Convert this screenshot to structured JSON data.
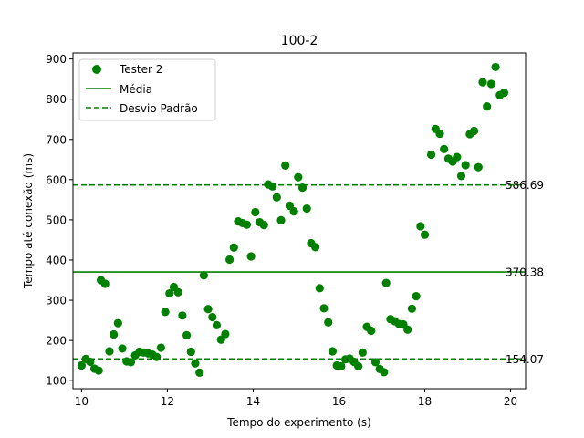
{
  "chart_data": {
    "type": "scatter",
    "title": "100-2",
    "xlabel": "Tempo do experimento (s)",
    "ylabel": "Tempo até conexão (ms)",
    "xlim": [
      9.8,
      20.35
    ],
    "ylim": [
      80,
      915
    ],
    "xticks": [
      10,
      12,
      14,
      16,
      18,
      20
    ],
    "yticks": [
      100,
      200,
      300,
      400,
      500,
      600,
      700,
      800,
      900
    ],
    "grid": false,
    "legend_position": "top-left",
    "color": "#008000",
    "series": [
      {
        "name": "Tester 2",
        "points": [
          [
            10.0,
            138
          ],
          [
            10.1,
            154
          ],
          [
            10.2,
            147
          ],
          [
            10.3,
            130
          ],
          [
            10.4,
            125
          ],
          [
            10.45,
            350
          ],
          [
            10.55,
            341
          ],
          [
            10.65,
            173
          ],
          [
            10.75,
            215
          ],
          [
            10.85,
            243
          ],
          [
            10.95,
            180
          ],
          [
            11.05,
            148
          ],
          [
            11.15,
            146
          ],
          [
            11.25,
            163
          ],
          [
            11.35,
            172
          ],
          [
            11.45,
            170
          ],
          [
            11.55,
            168
          ],
          [
            11.65,
            165
          ],
          [
            11.75,
            159
          ],
          [
            11.85,
            182
          ],
          [
            11.95,
            271
          ],
          [
            12.05,
            317
          ],
          [
            12.15,
            333
          ],
          [
            12.25,
            320
          ],
          [
            12.35,
            262
          ],
          [
            12.45,
            213
          ],
          [
            12.55,
            172
          ],
          [
            12.65,
            143
          ],
          [
            12.75,
            120
          ],
          [
            12.85,
            362
          ],
          [
            12.95,
            278
          ],
          [
            13.05,
            258
          ],
          [
            13.15,
            238
          ],
          [
            13.25,
            202
          ],
          [
            13.35,
            216
          ],
          [
            13.45,
            401
          ],
          [
            13.55,
            431
          ],
          [
            13.65,
            496
          ],
          [
            13.75,
            492
          ],
          [
            13.85,
            488
          ],
          [
            13.95,
            409
          ],
          [
            14.05,
            519
          ],
          [
            14.15,
            494
          ],
          [
            14.25,
            487
          ],
          [
            14.35,
            588
          ],
          [
            14.45,
            583
          ],
          [
            14.55,
            556
          ],
          [
            14.65,
            499
          ],
          [
            14.75,
            635
          ],
          [
            14.85,
            535
          ],
          [
            14.95,
            521
          ],
          [
            15.05,
            606
          ],
          [
            15.15,
            580
          ],
          [
            15.25,
            528
          ],
          [
            15.35,
            442
          ],
          [
            15.45,
            432
          ],
          [
            15.55,
            330
          ],
          [
            15.65,
            280
          ],
          [
            15.75,
            245
          ],
          [
            15.85,
            173
          ],
          [
            15.95,
            138
          ],
          [
            16.05,
            136
          ],
          [
            16.15,
            153
          ],
          [
            16.25,
            155
          ],
          [
            16.35,
            147
          ],
          [
            16.45,
            136
          ],
          [
            16.55,
            170
          ],
          [
            16.65,
            234
          ],
          [
            16.75,
            224
          ],
          [
            16.85,
            146
          ],
          [
            16.95,
            129
          ],
          [
            17.05,
            121
          ],
          [
            17.1,
            343
          ],
          [
            17.2,
            253
          ],
          [
            17.3,
            248
          ],
          [
            17.4,
            241
          ],
          [
            17.5,
            240
          ],
          [
            17.6,
            227
          ],
          [
            17.7,
            279
          ],
          [
            17.8,
            310
          ],
          [
            17.9,
            484
          ],
          [
            18.0,
            463
          ],
          [
            18.15,
            662
          ],
          [
            18.25,
            726
          ],
          [
            18.35,
            714
          ],
          [
            18.45,
            676
          ],
          [
            18.55,
            652
          ],
          [
            18.65,
            645
          ],
          [
            18.75,
            656
          ],
          [
            18.85,
            609
          ],
          [
            18.95,
            636
          ],
          [
            19.05,
            713
          ],
          [
            19.15,
            721
          ],
          [
            19.25,
            631
          ],
          [
            19.35,
            842
          ],
          [
            19.45,
            782
          ],
          [
            19.55,
            838
          ],
          [
            19.65,
            880
          ],
          [
            19.75,
            810
          ],
          [
            19.85,
            816
          ]
        ]
      },
      {
        "name": "Média",
        "type": "hline",
        "value": 370.38,
        "style": "solid"
      },
      {
        "name": "Desvio Padrão",
        "type": "hline",
        "values": [
          154.07,
          586.69
        ],
        "style": "dashed"
      }
    ],
    "annotations": [
      "586.69",
      "370.38",
      "154.07"
    ]
  }
}
